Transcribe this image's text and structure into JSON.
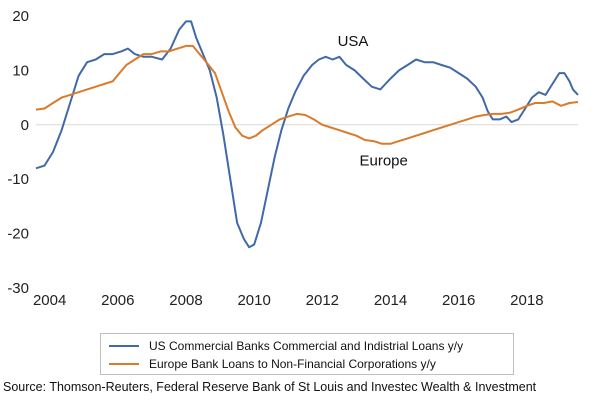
{
  "colors": {
    "usa": "#4169A8",
    "europe": "#D97B2B"
  },
  "chart_data": {
    "type": "line",
    "xlim": [
      2003.6,
      2019.5
    ],
    "ylim": [
      -30,
      20
    ],
    "x_ticks": [
      "2004",
      "2006",
      "2008",
      "2010",
      "2012",
      "2014",
      "2016",
      "2018"
    ],
    "y_ticks": [
      "20",
      "10",
      "0",
      "-10",
      "-20",
      "-30"
    ],
    "annotations": [
      {
        "text": "USA",
        "x": 2012.9,
        "y": 14.5
      },
      {
        "text": "Europe",
        "x": 2013.8,
        "y": -7.5
      }
    ],
    "grid": false,
    "legend_position": "bottom",
    "series": [
      {
        "name": "US Commercial Banks Commercial and Indistrial Loans y/y",
        "color": "#4169A8",
        "points": [
          [
            2003.6,
            -8
          ],
          [
            2003.85,
            -7.5
          ],
          [
            2004.1,
            -5
          ],
          [
            2004.35,
            -1
          ],
          [
            2004.6,
            4
          ],
          [
            2004.85,
            9
          ],
          [
            2005.1,
            11.5
          ],
          [
            2005.35,
            12
          ],
          [
            2005.6,
            13
          ],
          [
            2005.85,
            13
          ],
          [
            2006.1,
            13.5
          ],
          [
            2006.3,
            14
          ],
          [
            2006.5,
            13
          ],
          [
            2006.75,
            12.5
          ],
          [
            2007.0,
            12.5
          ],
          [
            2007.3,
            12
          ],
          [
            2007.55,
            14
          ],
          [
            2007.8,
            17.5
          ],
          [
            2008.0,
            19
          ],
          [
            2008.15,
            19
          ],
          [
            2008.3,
            16
          ],
          [
            2008.5,
            13
          ],
          [
            2008.7,
            10
          ],
          [
            2008.9,
            5
          ],
          [
            2009.1,
            -2
          ],
          [
            2009.3,
            -10
          ],
          [
            2009.5,
            -18
          ],
          [
            2009.7,
            -21
          ],
          [
            2009.85,
            -22.5
          ],
          [
            2010.0,
            -22
          ],
          [
            2010.2,
            -18
          ],
          [
            2010.4,
            -12
          ],
          [
            2010.6,
            -6
          ],
          [
            2010.8,
            -1
          ],
          [
            2011.0,
            3
          ],
          [
            2011.2,
            6
          ],
          [
            2011.45,
            9
          ],
          [
            2011.7,
            11
          ],
          [
            2011.9,
            12
          ],
          [
            2012.1,
            12.5
          ],
          [
            2012.3,
            12
          ],
          [
            2012.5,
            12.5
          ],
          [
            2012.7,
            11
          ],
          [
            2012.95,
            10
          ],
          [
            2013.2,
            8.5
          ],
          [
            2013.45,
            7
          ],
          [
            2013.7,
            6.5
          ],
          [
            2013.85,
            7.5
          ],
          [
            2014.0,
            8.5
          ],
          [
            2014.25,
            10
          ],
          [
            2014.5,
            11
          ],
          [
            2014.75,
            12
          ],
          [
            2015.0,
            11.5
          ],
          [
            2015.25,
            11.5
          ],
          [
            2015.5,
            11
          ],
          [
            2015.75,
            10.5
          ],
          [
            2016.0,
            9.5
          ],
          [
            2016.25,
            8.5
          ],
          [
            2016.5,
            7
          ],
          [
            2016.7,
            5
          ],
          [
            2016.85,
            2.5
          ],
          [
            2017.0,
            1
          ],
          [
            2017.2,
            1
          ],
          [
            2017.4,
            1.5
          ],
          [
            2017.55,
            0.5
          ],
          [
            2017.75,
            1
          ],
          [
            2017.95,
            3
          ],
          [
            2018.15,
            5
          ],
          [
            2018.35,
            6
          ],
          [
            2018.55,
            5.5
          ],
          [
            2018.75,
            7.5
          ],
          [
            2018.95,
            9.5
          ],
          [
            2019.1,
            9.5
          ],
          [
            2019.25,
            8
          ],
          [
            2019.35,
            6.5
          ],
          [
            2019.5,
            5.5
          ]
        ]
      },
      {
        "name": "Europe Bank Loans to Non-Financial Corporations y/y",
        "color": "#D97B2B",
        "points": [
          [
            2003.6,
            2.8
          ],
          [
            2003.85,
            3
          ],
          [
            2004.1,
            4
          ],
          [
            2004.35,
            5
          ],
          [
            2004.6,
            5.5
          ],
          [
            2004.85,
            6
          ],
          [
            2005.1,
            6.5
          ],
          [
            2005.35,
            7
          ],
          [
            2005.6,
            7.5
          ],
          [
            2005.85,
            8
          ],
          [
            2006.05,
            9.5
          ],
          [
            2006.25,
            11
          ],
          [
            2006.5,
            12
          ],
          [
            2006.75,
            13
          ],
          [
            2007.0,
            13
          ],
          [
            2007.25,
            13.5
          ],
          [
            2007.5,
            13.5
          ],
          [
            2007.75,
            14
          ],
          [
            2008.0,
            14.5
          ],
          [
            2008.2,
            14.5
          ],
          [
            2008.4,
            13
          ],
          [
            2008.6,
            11.5
          ],
          [
            2008.85,
            9.5
          ],
          [
            2009.05,
            6
          ],
          [
            2009.25,
            2.5
          ],
          [
            2009.45,
            -0.5
          ],
          [
            2009.65,
            -2
          ],
          [
            2009.85,
            -2.5
          ],
          [
            2010.05,
            -2
          ],
          [
            2010.25,
            -1
          ],
          [
            2010.5,
            0
          ],
          [
            2010.75,
            1
          ],
          [
            2011.0,
            1.5
          ],
          [
            2011.25,
            2
          ],
          [
            2011.5,
            1.8
          ],
          [
            2011.75,
            1
          ],
          [
            2012.0,
            0
          ],
          [
            2012.25,
            -0.5
          ],
          [
            2012.5,
            -1
          ],
          [
            2012.75,
            -1.5
          ],
          [
            2013.0,
            -2
          ],
          [
            2013.25,
            -2.8
          ],
          [
            2013.5,
            -3
          ],
          [
            2013.75,
            -3.5
          ],
          [
            2014.0,
            -3.5
          ],
          [
            2014.25,
            -3
          ],
          [
            2014.5,
            -2.5
          ],
          [
            2014.75,
            -2
          ],
          [
            2015.0,
            -1.5
          ],
          [
            2015.25,
            -1
          ],
          [
            2015.5,
            -0.5
          ],
          [
            2015.75,
            0
          ],
          [
            2016.0,
            0.5
          ],
          [
            2016.25,
            1
          ],
          [
            2016.5,
            1.5
          ],
          [
            2016.75,
            1.8
          ],
          [
            2017.0,
            2
          ],
          [
            2017.25,
            2
          ],
          [
            2017.5,
            2.2
          ],
          [
            2017.75,
            2.8
          ],
          [
            2018.0,
            3.5
          ],
          [
            2018.25,
            4
          ],
          [
            2018.5,
            4
          ],
          [
            2018.75,
            4.3
          ],
          [
            2019.0,
            3.5
          ],
          [
            2019.25,
            4
          ],
          [
            2019.5,
            4.2
          ]
        ]
      }
    ]
  },
  "source": "Source: Thomson-Reuters, Federal Reserve Bank of St Louis and Investec Wealth & Investment"
}
